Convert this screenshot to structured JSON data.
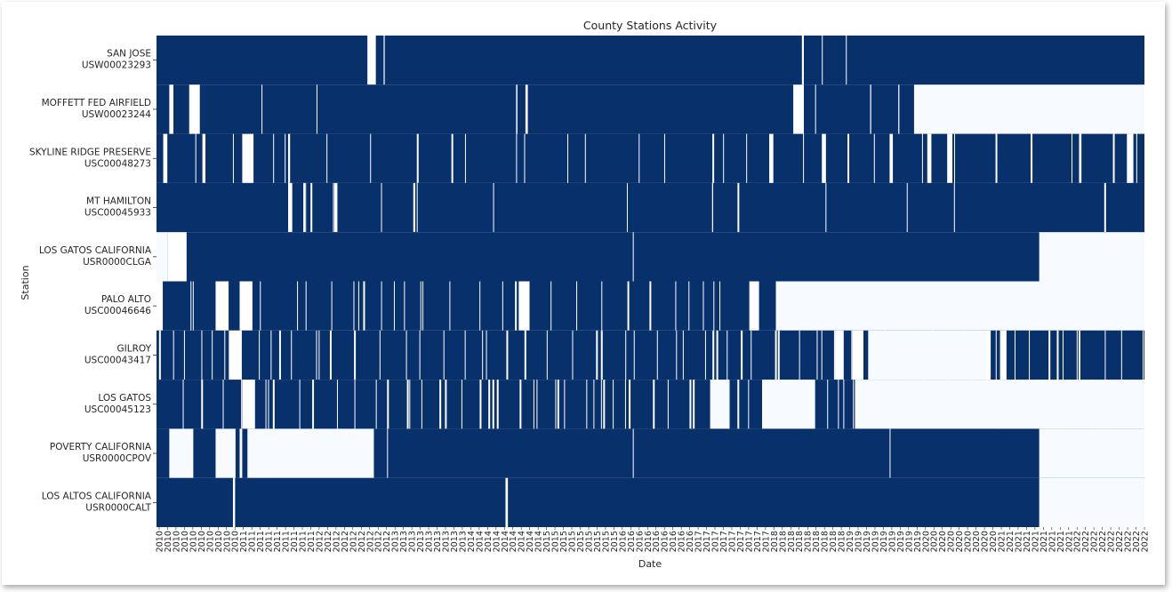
{
  "chart_data": {
    "type": "heatmap",
    "title": "County Stations Activity",
    "xlabel": "Date",
    "ylabel": "Station",
    "colors": {
      "active": "#08306b",
      "inactive": "#f7fbff",
      "gap": "#ffffff"
    },
    "x_range": [
      "2010-01-01",
      "2022-06-30"
    ],
    "x_tick_labels": [
      "2010",
      "2010",
      "2010",
      "2010",
      "2010",
      "2010",
      "2010",
      "2010",
      "2010",
      "2010",
      "2011",
      "2011",
      "2011",
      "2011",
      "2011",
      "2011",
      "2011",
      "2011",
      "2011",
      "2012",
      "2012",
      "2012",
      "2012",
      "2012",
      "2012",
      "2012",
      "2012",
      "2012",
      "2013",
      "2013",
      "2013",
      "2013",
      "2013",
      "2013",
      "2013",
      "2013",
      "2013",
      "2014",
      "2014",
      "2014",
      "2014",
      "2014",
      "2014",
      "2014",
      "2014",
      "2014",
      "2015",
      "2015",
      "2015",
      "2015",
      "2015",
      "2015",
      "2015",
      "2015",
      "2015",
      "2016",
      "2016",
      "2016",
      "2016",
      "2016",
      "2016",
      "2016",
      "2016",
      "2016",
      "2017",
      "2017",
      "2017",
      "2017",
      "2017",
      "2017",
      "2017",
      "2017",
      "2017",
      "2018",
      "2018",
      "2018",
      "2018",
      "2018",
      "2018",
      "2018",
      "2018",
      "2018",
      "2019",
      "2019",
      "2019",
      "2019",
      "2019",
      "2019",
      "2019",
      "2019",
      "2019",
      "2020",
      "2020",
      "2020",
      "2020",
      "2020",
      "2020",
      "2020",
      "2020",
      "2020",
      "2021",
      "2021",
      "2021",
      "2021",
      "2021",
      "2021",
      "2021",
      "2021",
      "2021",
      "2022",
      "2022",
      "2022",
      "2022",
      "2022",
      "2022",
      "2022",
      "2022",
      "2022"
    ],
    "stations": [
      {
        "name": "SAN JOSE",
        "id": "USW00023293",
        "inactive": [
          [
            "2022-06-30",
            "2022-06-30"
          ]
        ],
        "gaps": [
          [
            "2012-09-01",
            "2012-10-10"
          ],
          [
            "2018-03-01",
            "2018-03-10"
          ],
          [
            "2012-11-15",
            "2012-11-20"
          ],
          [
            "2018-06-01",
            "2018-06-05"
          ],
          [
            "2018-09-20",
            "2018-09-24"
          ]
        ]
      },
      {
        "name": "MOFFETT FED AIRFIELD",
        "id": "USW00023244",
        "inactive": [
          [
            "2019-08-01",
            "2022-06-30"
          ]
        ],
        "gaps": [
          [
            "2010-03-01",
            "2010-03-20"
          ],
          [
            "2010-06-01",
            "2010-07-20"
          ],
          [
            "2014-07-20",
            "2014-07-26"
          ],
          [
            "2014-09-01",
            "2014-09-12"
          ],
          [
            "2018-01-20",
            "2018-03-10"
          ],
          [
            "2018-05-01",
            "2018-05-05"
          ],
          [
            "2019-01-10",
            "2019-01-15"
          ],
          [
            "2019-05-20",
            "2019-05-25"
          ],
          [
            "2011-05-01",
            "2011-05-05"
          ],
          [
            "2012-01-10",
            "2012-01-14"
          ]
        ]
      },
      {
        "name": "SKYLINE RIDGE PRESERVE",
        "id": "USC00048273",
        "inactive": [],
        "gaps": [
          [
            "2010-02-01",
            "2010-02-20"
          ],
          [
            "2010-08-01",
            "2010-08-15"
          ],
          [
            "2011-02-01",
            "2011-03-25"
          ],
          [
            "2011-09-01",
            "2011-09-10"
          ],
          [
            "2017-10-01",
            "2017-10-20"
          ],
          [
            "2018-06-01",
            "2018-06-20"
          ],
          [
            "2019-04-10",
            "2019-04-25"
          ],
          [
            "2019-10-01",
            "2019-10-20"
          ],
          [
            "2020-01-01",
            "2020-01-25"
          ],
          [
            "2022-04-10",
            "2022-05-10"
          ],
          [
            "2021-09-01",
            "2021-09-12"
          ]
        ],
        "density": 0.22
      },
      {
        "name": "MT HAMILTON",
        "id": "USC00045933",
        "inactive": [],
        "gaps": [
          [
            "2011-09-01",
            "2011-09-20"
          ],
          [
            "2013-04-01",
            "2013-04-10"
          ],
          [
            "2017-01-10",
            "2017-01-15"
          ],
          [
            "2012-04-01",
            "2012-04-08"
          ],
          [
            "2011-11-10",
            "2011-11-18"
          ]
        ],
        "density": 0.08
      },
      {
        "name": "LOS GATOS CALIFORNIA",
        "id": "USR0000CLGA",
        "inactive": [
          [
            "2010-01-01",
            "2010-02-20"
          ],
          [
            "2021-03-01",
            "2022-06-30"
          ]
        ],
        "gaps": [
          [
            "2010-02-20",
            "2010-05-20"
          ],
          [
            "2016-01-10",
            "2016-01-14"
          ]
        ]
      },
      {
        "name": "PALO ALTO",
        "id": "USC00046646",
        "inactive": [
          [
            "2017-11-01",
            "2022-06-30"
          ]
        ],
        "gaps": [
          [
            "2010-01-01",
            "2010-01-30"
          ],
          [
            "2010-10-01",
            "2010-11-30"
          ],
          [
            "2011-01-20",
            "2011-03-20"
          ],
          [
            "2014-08-01",
            "2014-09-20"
          ],
          [
            "2017-07-01",
            "2017-08-15"
          ]
        ],
        "density": 0.35
      },
      {
        "name": "GILROY",
        "id": "USC00043417",
        "inactive": [
          [
            "2019-01-01",
            "2020-07-01"
          ]
        ],
        "gaps": [
          [
            "2010-12-01",
            "2011-01-30"
          ],
          [
            "2018-08-01",
            "2018-09-10"
          ],
          [
            "2018-10-20",
            "2018-12-10"
          ],
          [
            "2020-07-01",
            "2020-07-20"
          ],
          [
            "2020-09-01",
            "2020-10-01"
          ]
        ],
        "density": 0.5
      },
      {
        "name": "LOS GATOS",
        "id": "USC00045123",
        "inactive": [
          [
            "2017-01-01",
            "2017-04-01"
          ],
          [
            "2017-09-01",
            "2018-05-01"
          ],
          [
            "2018-11-01",
            "2022-06-30"
          ]
        ],
        "gaps": [
          [
            "2011-02-01",
            "2011-04-01"
          ]
        ],
        "density": 0.5
      },
      {
        "name": "POVERTY CALIFORNIA",
        "id": "USR0000CPOV",
        "inactive": [
          [
            "2010-03-01",
            "2010-06-20"
          ],
          [
            "2010-10-01",
            "2011-01-01"
          ],
          [
            "2011-01-20",
            "2011-02-01"
          ],
          [
            "2011-02-25",
            "2012-10-01"
          ],
          [
            "2021-03-01",
            "2022-06-30"
          ]
        ],
        "gaps": [
          [
            "2012-12-01",
            "2012-12-05"
          ],
          [
            "2016-01-10",
            "2016-01-14"
          ],
          [
            "2019-04-10",
            "2019-04-14"
          ]
        ]
      },
      {
        "name": "LOS ALTOS CALIFORNIA",
        "id": "USR0000CALT",
        "inactive": [
          [
            "2021-03-01",
            "2022-06-30"
          ]
        ],
        "gaps": [
          [
            "2010-12-20",
            "2010-12-30"
          ],
          [
            "2014-06-01",
            "2014-06-12"
          ]
        ]
      }
    ]
  }
}
